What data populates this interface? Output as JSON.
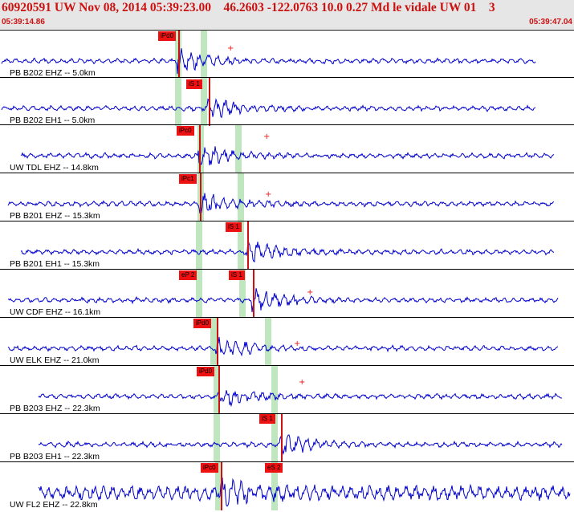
{
  "header": {
    "title": "60920591 UW Nov 08, 2014 05:39:23.00    46.2603 -122.0763 10.0 0.27 Md le vidale UW 01    3",
    "start_time": "05:39:14.86",
    "end_time": "05:39:47.04"
  },
  "colors": {
    "trace": "#0000cc",
    "pick": "#ee1111",
    "window": "#bfe6bf",
    "title": "#cc1111"
  },
  "traces": [
    {
      "label": "PB B202 EHZ -- 5.0km",
      "picks": [
        {
          "text": "iPd0"
        }
      ]
    },
    {
      "label": "PB B202 EH1 -- 5.0km",
      "picks": [
        {
          "text": "iS 1"
        }
      ]
    },
    {
      "label": "UW TDL EHZ -- 14.8km",
      "picks": [
        {
          "text": "iPc0"
        }
      ]
    },
    {
      "label": "PB B201 EHZ -- 15.3km",
      "picks": [
        {
          "text": "iPc1"
        }
      ]
    },
    {
      "label": "PB B201 EH1 -- 15.3km",
      "picks": [
        {
          "text": "iS 1"
        }
      ]
    },
    {
      "label": "UW CDF EHZ -- 16.1km",
      "picks": [
        {
          "text": "eP 2"
        },
        {
          "text": "iS 1"
        }
      ]
    },
    {
      "label": "UW ELK EHZ -- 21.0km",
      "picks": [
        {
          "text": "iPd0"
        }
      ]
    },
    {
      "label": "PB B203 EHZ -- 22.3km",
      "picks": [
        {
          "text": "iPd0"
        }
      ]
    },
    {
      "label": "PB B203 EH1 -- 22.3km",
      "picks": [
        {
          "text": "iS 1"
        }
      ]
    },
    {
      "label": "UW FL2 EHZ -- 22.8km",
      "picks": [
        {
          "text": "iPc0"
        },
        {
          "text": "eS 2"
        }
      ]
    }
  ]
}
